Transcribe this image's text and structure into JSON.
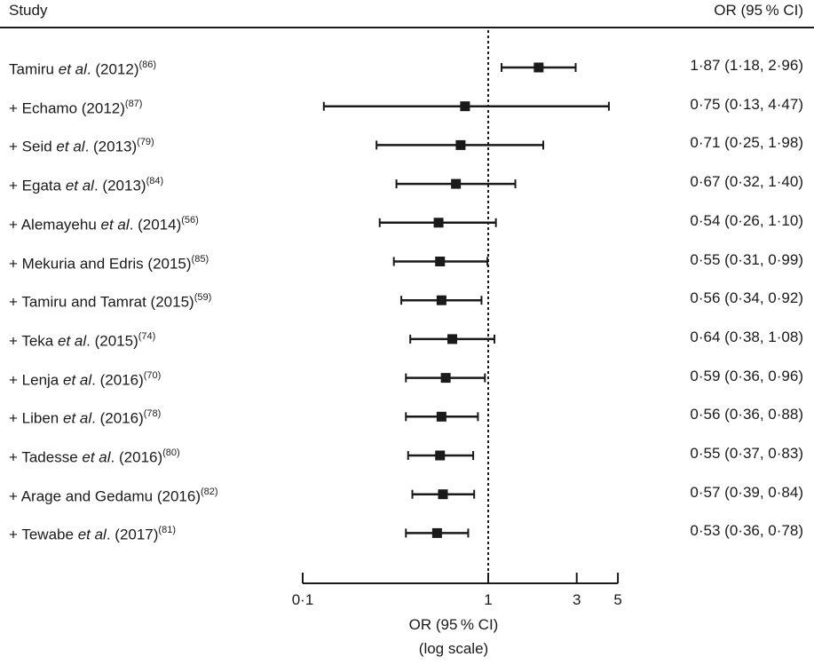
{
  "header": {
    "study_label": "Study",
    "ci_label": "OR (95 % CI)"
  },
  "axis": {
    "title_line1": "OR (95 % CI)",
    "title_line2": "(log scale)"
  },
  "chart_data": {
    "type": "forest",
    "scale": "log",
    "reference_line": 1,
    "xlim": [
      0.1,
      5
    ],
    "ticks": [
      {
        "value": 0.1,
        "label": "0·1"
      },
      {
        "value": 1,
        "label": "1"
      },
      {
        "value": 3,
        "label": "3"
      },
      {
        "value": 5,
        "label": "5"
      }
    ],
    "studies": [
      {
        "prefix": "",
        "name": "Tamiru",
        "etal": true,
        "year": "(2012)",
        "ref": "(86)",
        "or": 1.87,
        "lo": 1.18,
        "hi": 2.96,
        "ci_text": "1·87 (1·18, 2·96)"
      },
      {
        "prefix": "+ ",
        "name": "Echamo",
        "etal": false,
        "year": "(2012)",
        "ref": "(87)",
        "or": 0.75,
        "lo": 0.13,
        "hi": 4.47,
        "ci_text": "0·75 (0·13, 4·47)"
      },
      {
        "prefix": "+ ",
        "name": "Seid",
        "etal": true,
        "year": "(2013)",
        "ref": "(79)",
        "or": 0.71,
        "lo": 0.25,
        "hi": 1.98,
        "ci_text": "0·71 (0·25, 1·98)"
      },
      {
        "prefix": "+ ",
        "name": "Egata",
        "etal": true,
        "year": "(2013)",
        "ref": "(84)",
        "or": 0.67,
        "lo": 0.32,
        "hi": 1.4,
        "ci_text": "0·67 (0·32, 1·40)"
      },
      {
        "prefix": "+ ",
        "name": "Alemayehu",
        "etal": true,
        "year": "(2014)",
        "ref": "(56)",
        "or": 0.54,
        "lo": 0.26,
        "hi": 1.1,
        "ci_text": "0·54 (0·26, 1·10)"
      },
      {
        "prefix": "+ ",
        "name": "Mekuria and Edris",
        "etal": false,
        "year": "(2015)",
        "ref": "(85)",
        "or": 0.55,
        "lo": 0.31,
        "hi": 0.99,
        "ci_text": "0·55 (0·31, 0·99)"
      },
      {
        "prefix": "+ ",
        "name": "Tamiru and Tamrat",
        "etal": false,
        "year": "(2015)",
        "ref": "(59)",
        "or": 0.56,
        "lo": 0.34,
        "hi": 0.92,
        "ci_text": "0·56 (0·34, 0·92)"
      },
      {
        "prefix": "+ ",
        "name": "Teka",
        "etal": true,
        "year": "(2015)",
        "ref": "(74)",
        "or": 0.64,
        "lo": 0.38,
        "hi": 1.08,
        "ci_text": "0·64 (0·38, 1·08)"
      },
      {
        "prefix": "+ ",
        "name": "Lenja",
        "etal": true,
        "year": "(2016)",
        "ref": "(70)",
        "or": 0.59,
        "lo": 0.36,
        "hi": 0.96,
        "ci_text": "0·59 (0·36, 0·96)"
      },
      {
        "prefix": "+ ",
        "name": "Liben",
        "etal": true,
        "year": "(2016)",
        "ref": "(78)",
        "or": 0.56,
        "lo": 0.36,
        "hi": 0.88,
        "ci_text": "0·56 (0·36, 0·88)"
      },
      {
        "prefix": "+ ",
        "name": "Tadesse",
        "etal": true,
        "year": "(2016)",
        "ref": "(80)",
        "or": 0.55,
        "lo": 0.37,
        "hi": 0.83,
        "ci_text": "0·55 (0·37, 0·83)"
      },
      {
        "prefix": "+ ",
        "name": "Arage and Gedamu",
        "etal": false,
        "year": "(2016)",
        "ref": "(82)",
        "or": 0.57,
        "lo": 0.39,
        "hi": 0.84,
        "ci_text": "0·57 (0·39, 0·84)"
      },
      {
        "prefix": "+ ",
        "name": "Tewabe",
        "etal": true,
        "year": "(2017)",
        "ref": "(81)",
        "or": 0.53,
        "lo": 0.36,
        "hi": 0.78,
        "ci_text": "0·53 (0·36, 0·78)"
      }
    ]
  }
}
